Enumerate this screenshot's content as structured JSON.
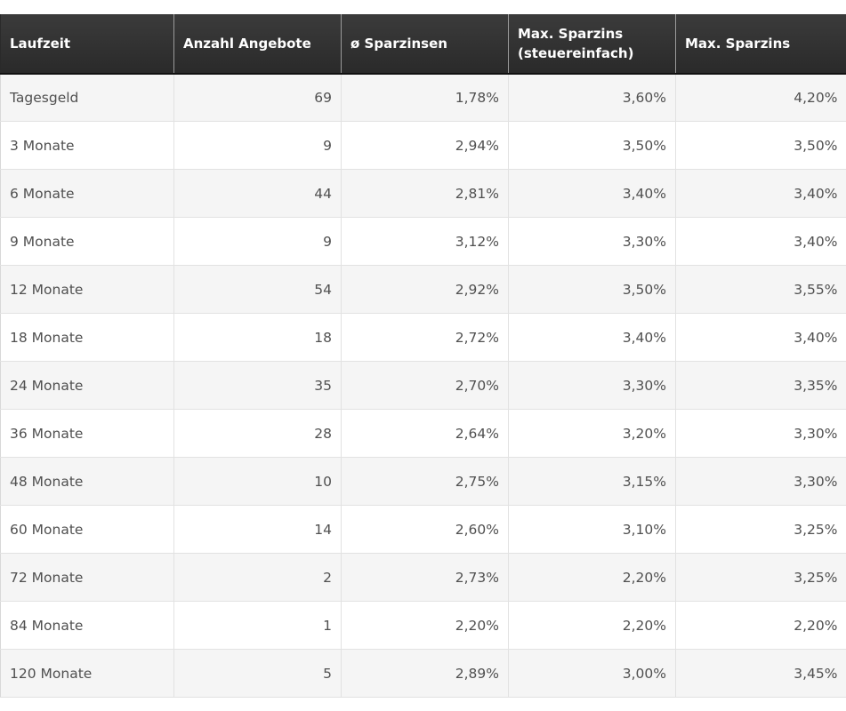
{
  "table": {
    "headers": [
      "Laufzeit",
      "Anzahl Angebote",
      "ø Sparzinsen",
      "Max. Sparzins (steuereinfach)",
      "Max. Sparzins"
    ],
    "rows": [
      [
        "Tagesgeld",
        "69",
        "1,78%",
        "3,60%",
        "4,20%"
      ],
      [
        "3 Monate",
        "9",
        "2,94%",
        "3,50%",
        "3,50%"
      ],
      [
        "6 Monate",
        "44",
        "2,81%",
        "3,40%",
        "3,40%"
      ],
      [
        "9 Monate",
        "9",
        "3,12%",
        "3,30%",
        "3,40%"
      ],
      [
        "12 Monate",
        "54",
        "2,92%",
        "3,50%",
        "3,55%"
      ],
      [
        "18 Monate",
        "18",
        "2,72%",
        "3,40%",
        "3,40%"
      ],
      [
        "24 Monate",
        "35",
        "2,70%",
        "3,30%",
        "3,35%"
      ],
      [
        "36 Monate",
        "28",
        "2,64%",
        "3,20%",
        "3,30%"
      ],
      [
        "48 Monate",
        "10",
        "2,75%",
        "3,15%",
        "3,30%"
      ],
      [
        "60 Monate",
        "14",
        "2,60%",
        "3,10%",
        "3,25%"
      ],
      [
        "72 Monate",
        "2",
        "2,73%",
        "2,20%",
        "3,25%"
      ],
      [
        "84 Monate",
        "1",
        "2,20%",
        "2,20%",
        "2,20%"
      ],
      [
        "120 Monate",
        "5",
        "2,89%",
        "3,00%",
        "3,45%"
      ]
    ]
  }
}
